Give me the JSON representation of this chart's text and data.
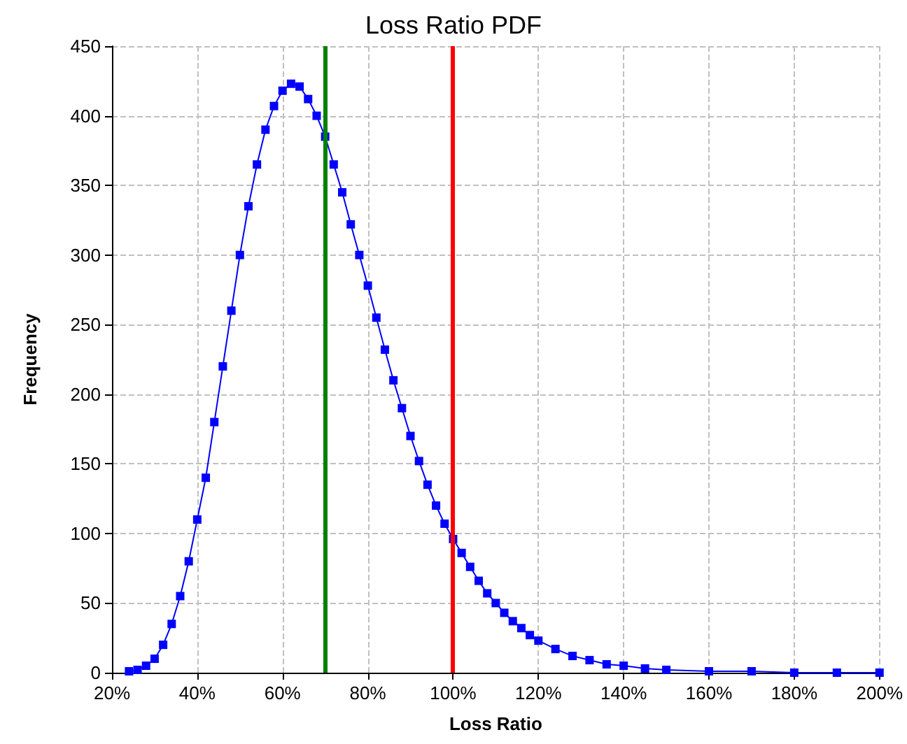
{
  "chart_data": {
    "type": "line",
    "title": "Loss Ratio PDF",
    "xlabel": "Loss Ratio",
    "ylabel": "Frequency",
    "x": [
      24,
      26,
      28,
      30,
      32,
      34,
      36,
      38,
      40,
      42,
      44,
      46,
      48,
      50,
      52,
      54,
      56,
      58,
      60,
      62,
      64,
      66,
      68,
      70,
      72,
      74,
      76,
      78,
      80,
      82,
      84,
      86,
      88,
      90,
      92,
      94,
      96,
      98,
      100,
      102,
      104,
      106,
      108,
      110,
      112,
      114,
      116,
      118,
      120,
      124,
      128,
      132,
      136,
      140,
      145,
      150,
      160,
      170,
      180,
      190,
      200
    ],
    "series": [
      {
        "color": "#0000ff",
        "values": [
          1,
          2,
          5,
          10,
          20,
          35,
          55,
          80,
          110,
          140,
          180,
          220,
          260,
          300,
          335,
          365,
          390,
          407,
          418,
          423,
          421,
          412,
          400,
          385,
          365,
          345,
          322,
          300,
          278,
          255,
          232,
          210,
          190,
          170,
          152,
          135,
          120,
          107,
          96,
          86,
          76,
          66,
          57,
          50,
          43,
          37,
          32,
          27,
          23,
          17,
          12,
          9,
          6,
          5,
          3,
          2,
          1,
          1,
          0,
          0,
          0
        ]
      }
    ],
    "xlim": [
      20,
      200
    ],
    "xticks": [
      {
        "value": 20,
        "label": "20%"
      },
      {
        "value": 40,
        "label": "40%"
      },
      {
        "value": 60,
        "label": "60%"
      },
      {
        "value": 80,
        "label": "80%"
      },
      {
        "value": 100,
        "label": "100%"
      },
      {
        "value": 120,
        "label": "120%"
      },
      {
        "value": 140,
        "label": "140%"
      },
      {
        "value": 160,
        "label": "160%"
      },
      {
        "value": 180,
        "label": "180%"
      },
      {
        "value": 200,
        "label": "200%"
      }
    ],
    "ylim": [
      0,
      450
    ],
    "yticks": [
      0,
      50,
      100,
      150,
      200,
      250,
      300,
      350,
      400,
      450
    ],
    "ref_lines": [
      {
        "axis": "x",
        "value": 70,
        "color": "#008000"
      },
      {
        "axis": "x",
        "value": 100,
        "color": "#ff0000"
      }
    ],
    "grid": true,
    "marker": "square",
    "line_style": "solid"
  }
}
